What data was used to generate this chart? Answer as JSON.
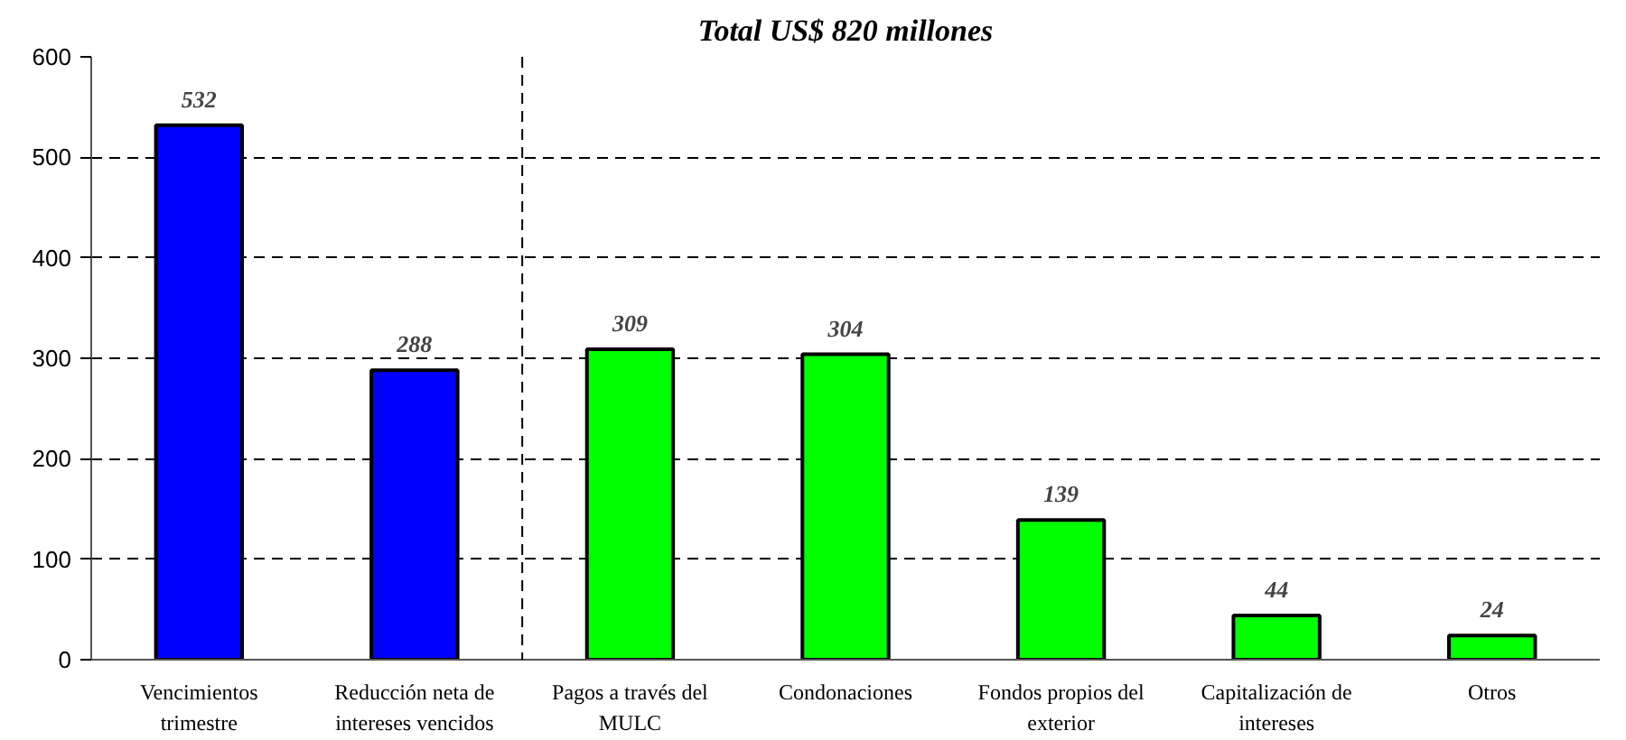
{
  "chart_data": {
    "type": "bar",
    "title": "Total US$ 820 millones",
    "categories": [
      "Vencimientos trimestre",
      "Reducción neta de intereses vencidos",
      "Pagos a través del MULC",
      "Condonaciones",
      "Fondos propios del exterior",
      "Capitalización de intereses",
      "Otros"
    ],
    "values": [
      532,
      288,
      309,
      304,
      139,
      44,
      24
    ],
    "colors": [
      "#0000ff",
      "#0000ff",
      "#00ff00",
      "#00ff00",
      "#00ff00",
      "#00ff00",
      "#00ff00"
    ],
    "ylim": [
      0,
      600
    ],
    "yticks": [
      0,
      100,
      200,
      300,
      400,
      500,
      600
    ],
    "grid": "y",
    "data_labels": true
  }
}
